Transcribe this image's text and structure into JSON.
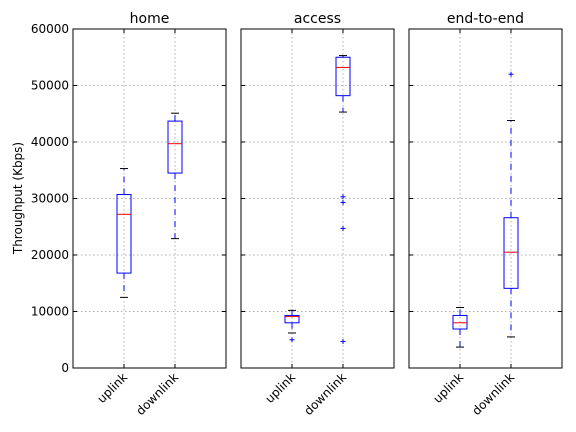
{
  "chart_data": [
    {
      "type": "box",
      "title": "home",
      "ylabel": "Throughput (Kbps)",
      "ylim": [
        0,
        60000
      ],
      "yticks": [
        0,
        10000,
        20000,
        30000,
        40000,
        50000,
        60000
      ],
      "categories": [
        "uplink",
        "downlink"
      ],
      "grid": true,
      "boxes": [
        {
          "label": "uplink",
          "whisker_low": 12500,
          "q1": 16800,
          "median": 27200,
          "q3": 30700,
          "whisker_high": 35300,
          "fliers": []
        },
        {
          "label": "downlink",
          "whisker_low": 22900,
          "q1": 34500,
          "median": 39700,
          "q3": 43700,
          "whisker_high": 45100,
          "fliers": []
        }
      ]
    },
    {
      "type": "box",
      "title": "access",
      "ylim": [
        0,
        60000
      ],
      "categories": [
        "uplink",
        "downlink"
      ],
      "grid": true,
      "boxes": [
        {
          "label": "uplink",
          "whisker_low": 6200,
          "q1": 8000,
          "median": 9100,
          "q3": 9300,
          "whisker_high": 10200,
          "fliers": [
            5000
          ]
        },
        {
          "label": "downlink",
          "whisker_low": 45300,
          "q1": 48200,
          "median": 53200,
          "q3": 55000,
          "whisker_high": 55300,
          "fliers": [
            30300,
            29300,
            24700,
            4700
          ]
        }
      ]
    },
    {
      "type": "box",
      "title": "end-to-end",
      "ylim": [
        0,
        60000
      ],
      "categories": [
        "uplink",
        "downlink"
      ],
      "grid": true,
      "boxes": [
        {
          "label": "uplink",
          "whisker_low": 3700,
          "q1": 6900,
          "median": 8000,
          "q3": 9300,
          "whisker_high": 10700,
          "fliers": []
        },
        {
          "label": "downlink",
          "whisker_low": 5500,
          "q1": 14100,
          "median": 20500,
          "q3": 26600,
          "whisker_high": 43800,
          "fliers": [
            52000
          ]
        }
      ]
    }
  ],
  "colors": {
    "box": "#0000ff",
    "whisker": "#0000ff",
    "median": "#ff0000",
    "flier": "#0000ff",
    "cap": "#000000",
    "grid": "#b0b0b0"
  }
}
